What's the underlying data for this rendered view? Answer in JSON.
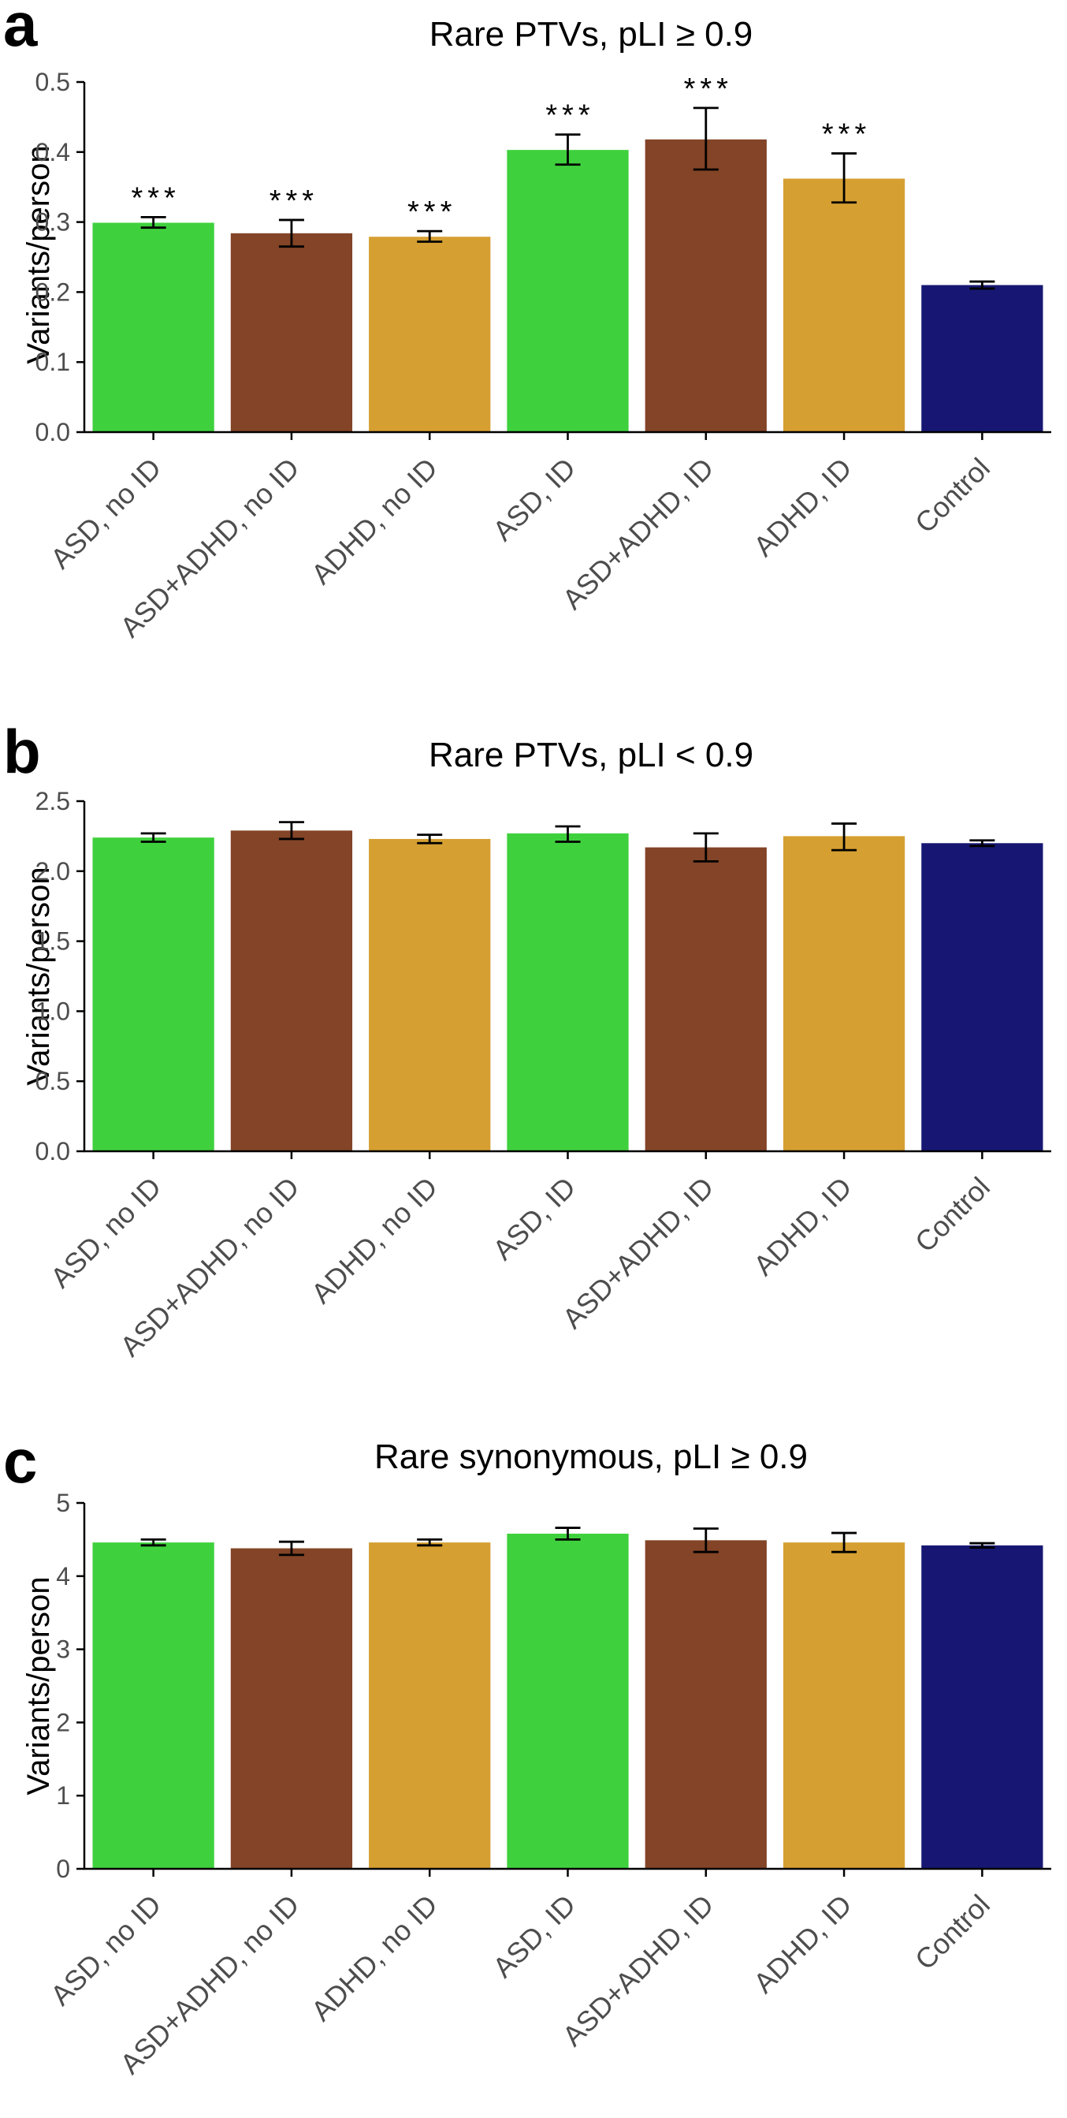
{
  "colors": {
    "asd": "#3fd13d",
    "asd_adhd": "#834427",
    "adhd": "#d59f31",
    "control": "#171773"
  },
  "chart_data": [
    {
      "panel": "a",
      "type": "bar",
      "title": "Rare PTVs, pLI ≥ 0.9",
      "xlabel": "",
      "ylabel": "Variants/person",
      "ylim": [
        0,
        0.5
      ],
      "yticks": [
        "0.0",
        "0.1",
        "0.2",
        "0.3",
        "0.4",
        "0.5"
      ],
      "categories": [
        "ASD, no ID",
        "ASD+ADHD, no ID",
        "ADHD, no ID",
        "ASD, ID",
        "ASD+ADHD, ID",
        "ADHD, ID",
        "Control"
      ],
      "bar_colors": [
        "asd",
        "asd_adhd",
        "adhd",
        "asd",
        "asd_adhd",
        "adhd",
        "control"
      ],
      "values": [
        0.299,
        0.284,
        0.279,
        0.403,
        0.418,
        0.362,
        0.21
      ],
      "err_low": [
        0.292,
        0.265,
        0.272,
        0.382,
        0.375,
        0.328,
        0.205
      ],
      "err_high": [
        0.307,
        0.303,
        0.287,
        0.425,
        0.463,
        0.398,
        0.215
      ],
      "annotations": [
        "***",
        "***",
        "***",
        "***",
        "***",
        "***",
        ""
      ]
    },
    {
      "panel": "b",
      "type": "bar",
      "title": "Rare PTVs, pLI < 0.9",
      "xlabel": "",
      "ylabel": "Variants/person",
      "ylim": [
        0,
        2.5
      ],
      "yticks": [
        "0.0",
        "0.5",
        "1.0",
        "1.5",
        "2.0",
        "2.5"
      ],
      "categories": [
        "ASD, no ID",
        "ASD+ADHD, no ID",
        "ADHD, no ID",
        "ASD, ID",
        "ASD+ADHD, ID",
        "ADHD, ID",
        "Control"
      ],
      "bar_colors": [
        "asd",
        "asd_adhd",
        "adhd",
        "asd",
        "asd_adhd",
        "adhd",
        "control"
      ],
      "values": [
        2.24,
        2.29,
        2.23,
        2.27,
        2.17,
        2.25,
        2.2
      ],
      "err_low": [
        2.21,
        2.23,
        2.2,
        2.21,
        2.07,
        2.15,
        2.18
      ],
      "err_high": [
        2.27,
        2.35,
        2.26,
        2.32,
        2.27,
        2.34,
        2.22
      ],
      "annotations": [
        "",
        "",
        "",
        "",
        "",
        "",
        ""
      ]
    },
    {
      "panel": "c",
      "type": "bar",
      "title": "Rare synonymous, pLI ≥ 0.9",
      "xlabel": "",
      "ylabel": "Variants/person",
      "ylim": [
        0,
        5
      ],
      "yticks": [
        "0",
        "1",
        "2",
        "3",
        "4",
        "5"
      ],
      "categories": [
        "ASD, no ID",
        "ASD+ADHD, no ID",
        "ADHD, no ID",
        "ASD, ID",
        "ASD+ADHD, ID",
        "ADHD, ID",
        "Control"
      ],
      "bar_colors": [
        "asd",
        "asd_adhd",
        "adhd",
        "asd",
        "asd_adhd",
        "adhd",
        "control"
      ],
      "values": [
        4.46,
        4.38,
        4.46,
        4.58,
        4.49,
        4.46,
        4.42
      ],
      "err_low": [
        4.42,
        4.29,
        4.42,
        4.5,
        4.33,
        4.33,
        4.39
      ],
      "err_high": [
        4.5,
        4.47,
        4.5,
        4.66,
        4.65,
        4.59,
        4.45
      ],
      "annotations": [
        "",
        "",
        "",
        "",
        "",
        "",
        ""
      ]
    }
  ]
}
